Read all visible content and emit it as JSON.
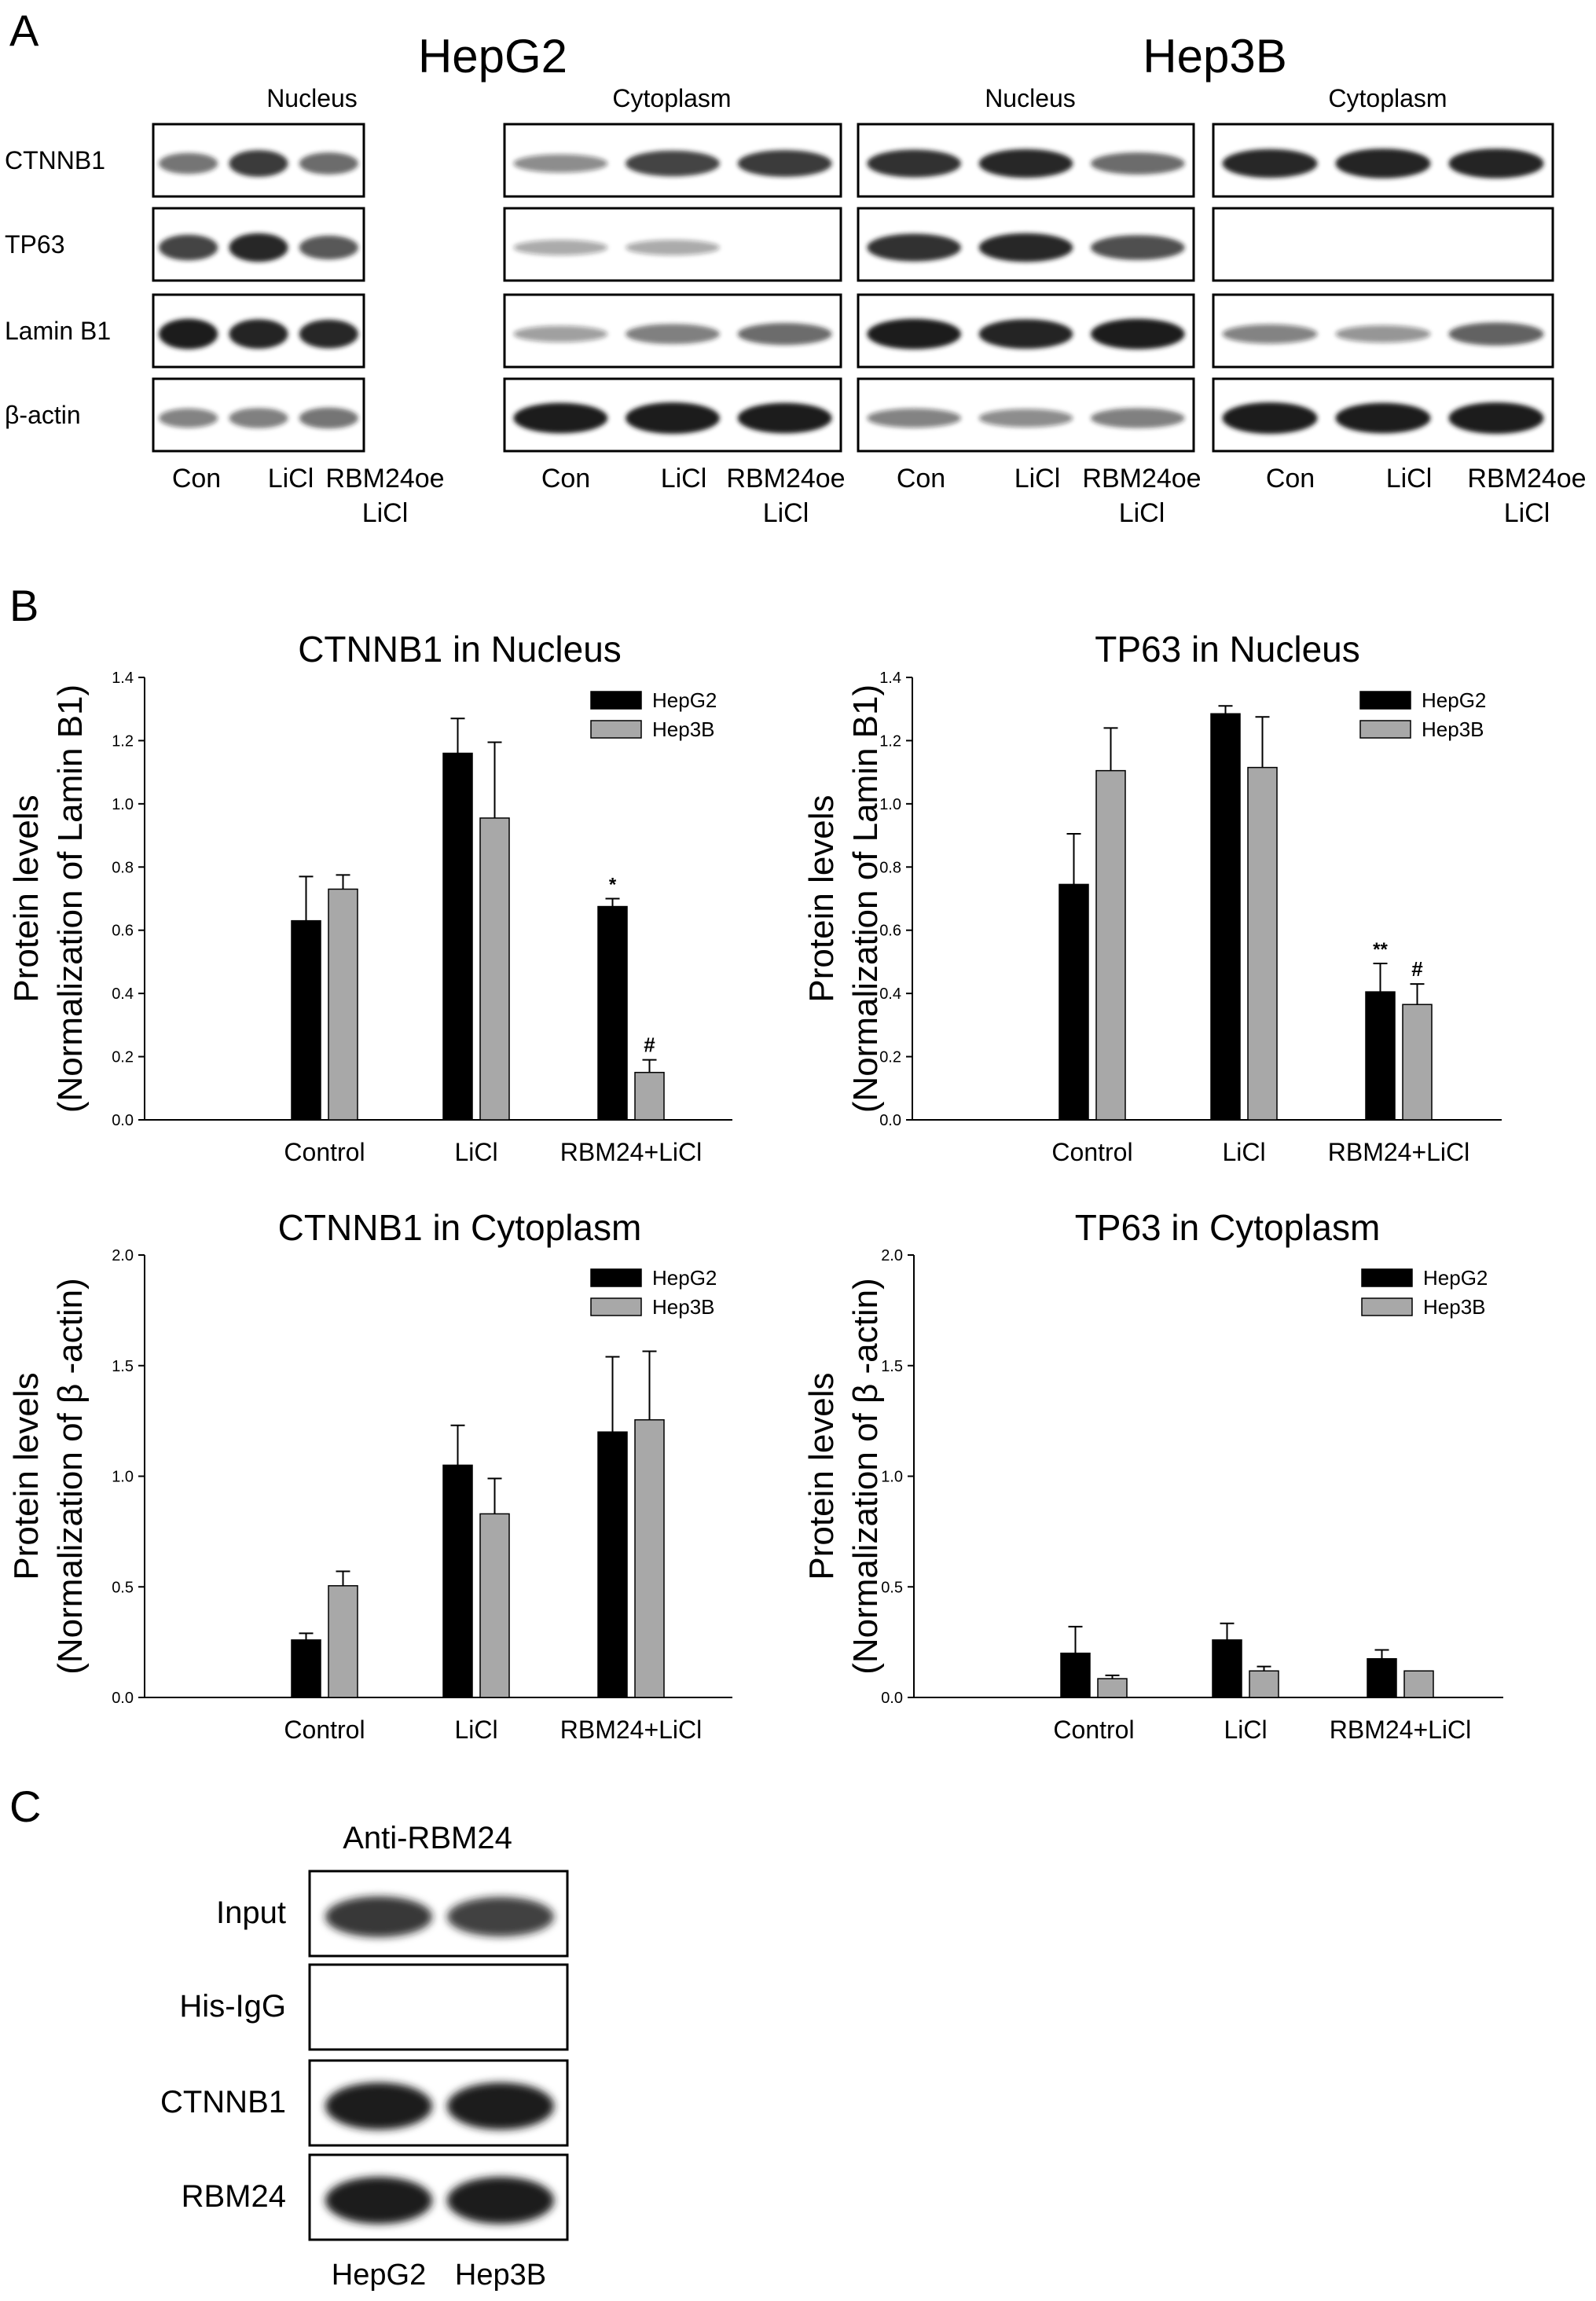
{
  "panel_letters": {
    "a": "A",
    "b": "B",
    "c": "C"
  },
  "panel_a": {
    "cell_lines": [
      "HepG2",
      "Hep3B"
    ],
    "fractions": [
      "Nucleus",
      "Cytoplasm",
      "Nucleus",
      "Cytoplasm"
    ],
    "row_labels": [
      "CTNNB1",
      "TP63",
      "Lamin B1",
      "β-actin"
    ],
    "lanes": [
      [
        "Con",
        "LiCl",
        "RBM24oe",
        "LiCl"
      ],
      [
        "Con",
        "LiCl",
        "RBM24oe",
        "LiCl"
      ],
      [
        "Con",
        "LiCl",
        "RBM24oe",
        "LiCl"
      ],
      [
        "Con",
        "LiCl",
        "RBM24oe",
        "LiCl"
      ]
    ]
  },
  "panel_c": {
    "title": "Anti-RBM24",
    "row_labels": [
      "Input",
      "His-IgG",
      "CTNNB1",
      "RBM24"
    ],
    "lanes": [
      "HepG2",
      "Hep3B"
    ]
  },
  "colors": {
    "hepg2": "#000000",
    "hep3b": "#a8a8a8",
    "band": "#1a1a1a"
  },
  "chart_data": [
    {
      "type": "bar",
      "title": "CTNNB1 in Nucleus",
      "ylabel": [
        "Protein levels",
        "(Normalization of Lamin B1)"
      ],
      "categories": [
        "Control",
        "LiCl",
        "RBM24+LiCl"
      ],
      "ylim": [
        0,
        1.4
      ],
      "yticks": [
        "0.0",
        "0.2",
        "0.4",
        "0.6",
        "0.8",
        "1.0",
        "1.2",
        "1.4"
      ],
      "legend_position": "top-right",
      "series": [
        {
          "name": "HepG2",
          "values": [
            0.63,
            1.16,
            0.675
          ],
          "errors": [
            0.14,
            0.11,
            0.025
          ]
        },
        {
          "name": "Hep3B",
          "values": [
            0.73,
            0.955,
            0.15
          ],
          "errors": [
            0.045,
            0.24,
            0.04
          ]
        }
      ],
      "annotations": [
        {
          "series": 0,
          "index": 2,
          "text": "*"
        },
        {
          "series": 1,
          "index": 2,
          "text": "#"
        }
      ]
    },
    {
      "type": "bar",
      "title": "TP63 in Nucleus",
      "ylabel": [
        "Protein levels",
        "(Normalization of Lamin B1)"
      ],
      "categories": [
        "Control",
        "LiCl",
        "RBM24+LiCl"
      ],
      "ylim": [
        0,
        1.4
      ],
      "yticks": [
        "0.0",
        "0.2",
        "0.4",
        "0.6",
        "0.8",
        "1.0",
        "1.2",
        "1.4"
      ],
      "legend_position": "top-right",
      "series": [
        {
          "name": "HepG2",
          "values": [
            0.745,
            1.285,
            0.405
          ],
          "errors": [
            0.16,
            0.025,
            0.09
          ]
        },
        {
          "name": "Hep3B",
          "values": [
            1.105,
            1.115,
            0.365
          ],
          "errors": [
            0.135,
            0.16,
            0.065
          ]
        }
      ],
      "annotations": [
        {
          "series": 0,
          "index": 2,
          "text": "**"
        },
        {
          "series": 1,
          "index": 2,
          "text": "#"
        }
      ]
    },
    {
      "type": "bar",
      "title": "CTNNB1 in Cytoplasm",
      "ylabel": [
        "Protein levels",
        "(Normalization of β -actin)"
      ],
      "categories": [
        "Control",
        "LiCl",
        "RBM24+LiCl"
      ],
      "ylim": [
        0,
        2.0
      ],
      "yticks": [
        "0.0",
        "0.5",
        "1.0",
        "1.5",
        "2.0"
      ],
      "legend_position": "top-right",
      "series": [
        {
          "name": "HepG2",
          "values": [
            0.26,
            1.05,
            1.2
          ],
          "errors": [
            0.03,
            0.18,
            0.34
          ]
        },
        {
          "name": "Hep3B",
          "values": [
            0.505,
            0.83,
            1.255
          ],
          "errors": [
            0.065,
            0.16,
            0.31
          ]
        }
      ],
      "annotations": []
    },
    {
      "type": "bar",
      "title": "TP63 in Cytoplasm",
      "ylabel": [
        "Protein levels",
        "(Normalization of β -actin)"
      ],
      "categories": [
        "Control",
        "LiCl",
        "RBM24+LiCl"
      ],
      "ylim": [
        0,
        2.0
      ],
      "yticks": [
        "0.0",
        "0.5",
        "1.0",
        "1.5",
        "2.0"
      ],
      "legend_position": "top-right",
      "series": [
        {
          "name": "HepG2",
          "values": [
            0.2,
            0.26,
            0.175
          ],
          "errors": [
            0.12,
            0.075,
            0.04
          ]
        },
        {
          "name": "Hep3B",
          "values": [
            0.085,
            0.12,
            0.12
          ],
          "errors": [
            0.015,
            0.02,
            0.0
          ]
        }
      ],
      "annotations": []
    }
  ]
}
